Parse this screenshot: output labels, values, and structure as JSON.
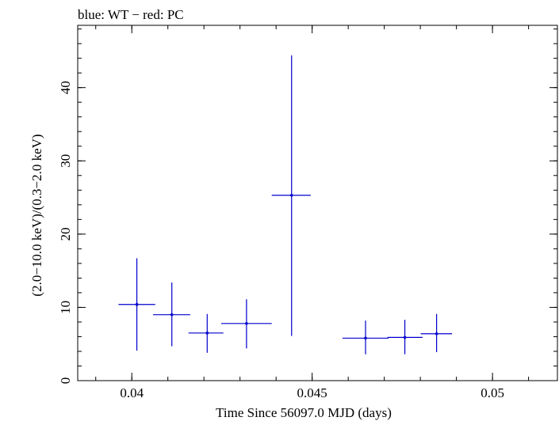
{
  "chart_data": {
    "type": "scatter",
    "title": "blue: WT − red: PC",
    "xlabel": "Time Since 56097.0 MJD (days)",
    "ylabel": "(2.0−10.0 keV)/(0.3−2.0 keV)",
    "xlim": [
      0.0385,
      0.0518
    ],
    "ylim": [
      0,
      48.5
    ],
    "x_ticks": [
      {
        "value": 0.04,
        "label": "0.04"
      },
      {
        "value": 0.045,
        "label": "0.045"
      },
      {
        "value": 0.05,
        "label": "0.05"
      }
    ],
    "y_ticks": [
      {
        "value": 0,
        "label": "0"
      },
      {
        "value": 10,
        "label": "10"
      },
      {
        "value": 20,
        "label": "20"
      },
      {
        "value": 30,
        "label": "30"
      },
      {
        "value": 40,
        "label": "40"
      }
    ],
    "x_minor_step": 0.001,
    "y_minor_step": 2,
    "grid": false,
    "series": [
      {
        "name": "WT",
        "color": "#0000cc",
        "points": [
          {
            "x": 0.04014,
            "y": 10.4,
            "x_lo": 0.03963,
            "x_hi": 0.04065,
            "y_lo": 4.1,
            "y_hi": 16.7
          },
          {
            "x": 0.04111,
            "y": 9.0,
            "x_lo": 0.04059,
            "x_hi": 0.04162,
            "y_lo": 4.7,
            "y_hi": 13.4
          },
          {
            "x": 0.04209,
            "y": 6.5,
            "x_lo": 0.04157,
            "x_hi": 0.04254,
            "y_lo": 3.8,
            "y_hi": 9.1
          },
          {
            "x": 0.04318,
            "y": 7.8,
            "x_lo": 0.04248,
            "x_hi": 0.04388,
            "y_lo": 4.4,
            "y_hi": 11.1
          },
          {
            "x": 0.04443,
            "y": 25.3,
            "x_lo": 0.04388,
            "x_hi": 0.04496,
            "y_lo": 6.1,
            "y_hi": 44.4
          },
          {
            "x": 0.04648,
            "y": 5.8,
            "x_lo": 0.04584,
            "x_hi": 0.04712,
            "y_lo": 3.6,
            "y_hi": 8.2
          },
          {
            "x": 0.04757,
            "y": 5.9,
            "x_lo": 0.04709,
            "x_hi": 0.04806,
            "y_lo": 3.6,
            "y_hi": 8.3
          },
          {
            "x": 0.04845,
            "y": 6.4,
            "x_lo": 0.04801,
            "x_hi": 0.04888,
            "y_lo": 3.9,
            "y_hi": 9.1
          }
        ]
      }
    ]
  }
}
